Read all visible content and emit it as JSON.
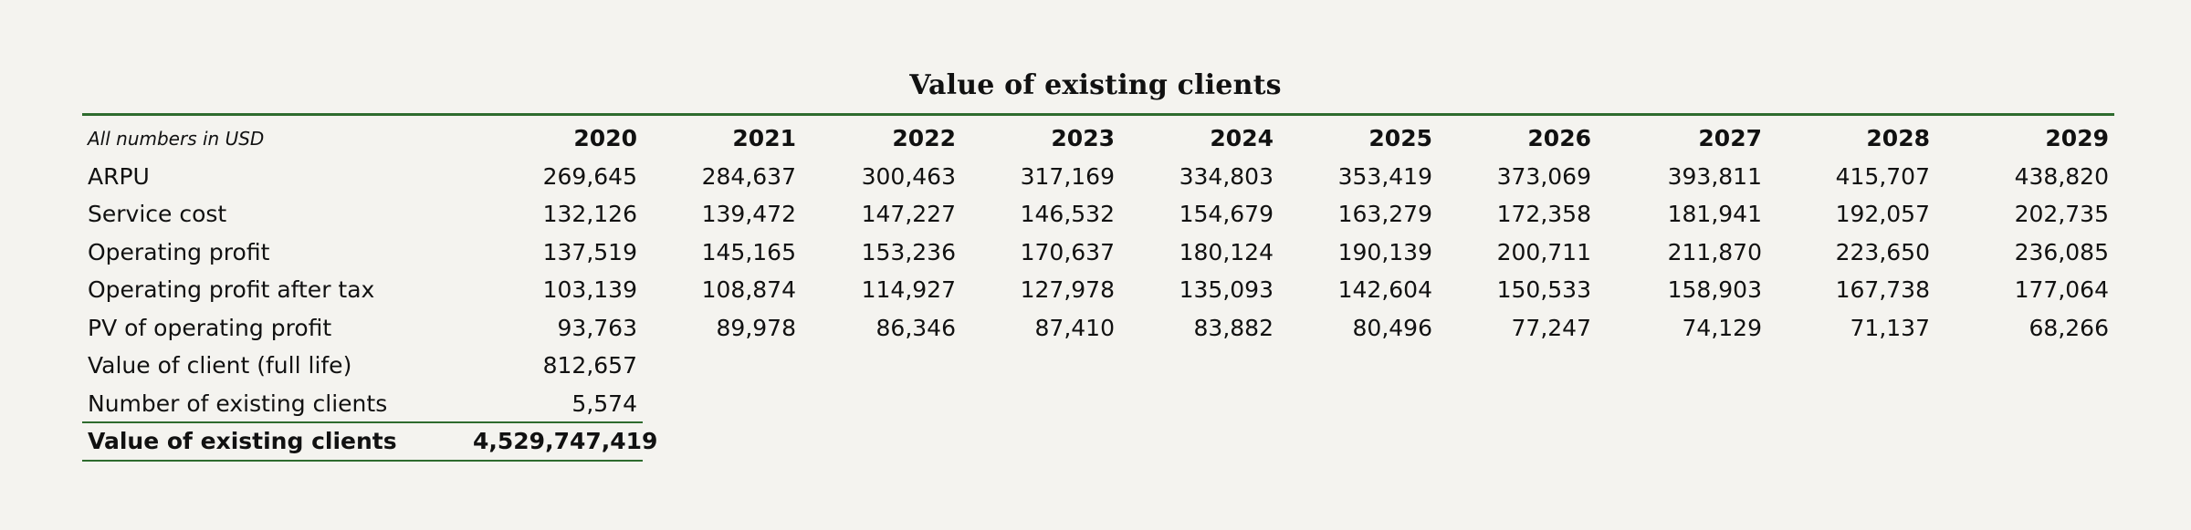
{
  "title": "Value of existing clients",
  "table": {
    "units_note": "All numbers in USD",
    "years": [
      "2020",
      "2021",
      "2022",
      "2023",
      "2024",
      "2025",
      "2026",
      "2027",
      "2028",
      "2029"
    ],
    "rows": [
      {
        "label": "ARPU",
        "values": [
          "269,645",
          "284,637",
          "300,463",
          "317,169",
          "334,803",
          "353,419",
          "373,069",
          "393,811",
          "415,707",
          "438,820"
        ]
      },
      {
        "label": "Service cost",
        "values": [
          "132,126",
          "139,472",
          "147,227",
          "146,532",
          "154,679",
          "163,279",
          "172,358",
          "181,941",
          "192,057",
          "202,735"
        ]
      },
      {
        "label": "Operating profit",
        "values": [
          "137,519",
          "145,165",
          "153,236",
          "170,637",
          "180,124",
          "190,139",
          "200,711",
          "211,870",
          "223,650",
          "236,085"
        ]
      },
      {
        "label": "Operating profit after tax",
        "values": [
          "103,139",
          "108,874",
          "114,927",
          "127,978",
          "135,093",
          "142,604",
          "150,533",
          "158,903",
          "167,738",
          "177,064"
        ]
      },
      {
        "label": "PV of operating profit",
        "values": [
          "93,763",
          "89,978",
          "86,346",
          "87,410",
          "83,882",
          "80,496",
          "77,247",
          "74,129",
          "71,137",
          "68,266"
        ]
      },
      {
        "label": "Value of client (full life)",
        "values": [
          "812,657"
        ]
      },
      {
        "label": "Number of existing clients",
        "values": [
          "5,574"
        ]
      }
    ],
    "total": {
      "label": "Value of existing clients",
      "value": "4,529,747,419"
    }
  },
  "colors": {
    "background": "#f4f3ef",
    "rule": "#2e6b2e",
    "text": "#111111"
  }
}
